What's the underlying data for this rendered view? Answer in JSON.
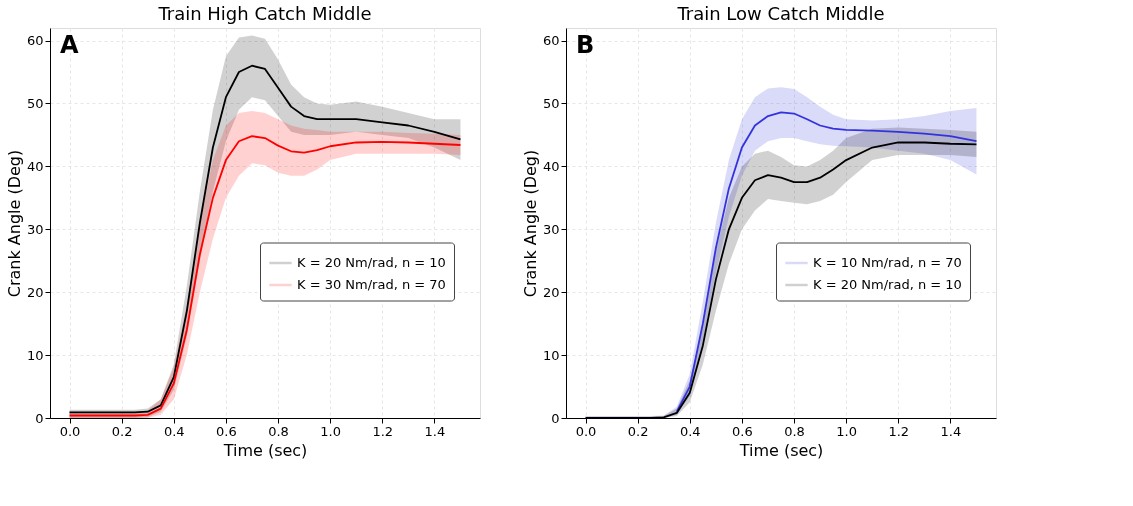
{
  "chart_data": [
    {
      "type": "line",
      "title": "Train High Catch Middle",
      "xlabel": "Time (sec)",
      "ylabel": "Crank Angle (Deg)",
      "annotations": [
        "A"
      ],
      "x": [
        0,
        0.1,
        0.2,
        0.25,
        0.3,
        0.35,
        0.4,
        0.45,
        0.5,
        0.55,
        0.6,
        0.65,
        0.7,
        0.75,
        0.8,
        0.85,
        0.9,
        0.95,
        1.0,
        1.1,
        1.2,
        1.3,
        1.4,
        1.5
      ],
      "series": [
        {
          "name": "K = 20 Nm/rad, n = 10",
          "color": "#000000",
          "values": [
            0.9,
            0.9,
            0.9,
            0.9,
            1.0,
            2,
            6.5,
            17,
            31,
            43,
            51,
            55,
            56,
            55.5,
            52.5,
            49.5,
            48,
            47.5,
            47.5,
            47.5,
            47,
            46.5,
            45.5,
            44.3
          ],
          "lower": [
            0,
            0,
            0,
            0,
            0.1,
            1,
            4.5,
            13,
            25,
            36,
            44,
            49,
            51,
            50.5,
            48,
            45.5,
            45,
            45,
            45,
            45.5,
            45,
            44.5,
            43,
            41
          ],
          "upper": [
            1.3,
            1.3,
            1.3,
            1.3,
            1.5,
            3,
            8.5,
            21,
            36,
            49,
            57.5,
            60.5,
            60.8,
            60.3,
            57,
            53,
            51,
            50,
            49.8,
            50.3,
            49.5,
            48.5,
            47.5,
            47.5
          ]
        },
        {
          "name": "K = 30 Nm/rad, n = 70",
          "color": "#ff0000",
          "values": [
            0.4,
            0.4,
            0.4,
            0.4,
            0.5,
            1.5,
            5.5,
            14,
            26,
            35,
            41,
            44,
            44.8,
            44.5,
            43.3,
            42.4,
            42.2,
            42.6,
            43.2,
            43.8,
            43.9,
            43.8,
            43.6,
            43.4
          ],
          "lower": [
            0,
            0,
            0,
            0,
            0,
            0.5,
            3,
            10,
            20,
            28.5,
            35,
            38.5,
            40.5,
            40.2,
            39,
            38.5,
            38.5,
            39.5,
            41,
            42,
            42,
            42,
            42,
            41.8
          ],
          "upper": [
            1,
            1,
            1,
            1,
            1.2,
            3,
            8,
            18,
            31,
            41,
            46.5,
            48.5,
            48.8,
            48.5,
            47.5,
            46.5,
            46,
            45.8,
            45.5,
            45.5,
            45.5,
            45.3,
            45.2,
            45
          ]
        }
      ],
      "xlim": [
        -0.075,
        1.575
      ],
      "ylim": [
        0,
        62
      ],
      "xticks": [
        {
          "value": 0,
          "label": "0.0"
        },
        {
          "value": 0.2,
          "label": "0.2"
        },
        {
          "value": 0.4,
          "label": "0.4"
        },
        {
          "value": 0.6,
          "label": "0.6"
        },
        {
          "value": 0.8,
          "label": "0.8"
        },
        {
          "value": 1.0,
          "label": "1.0"
        },
        {
          "value": 1.2,
          "label": "1.2"
        },
        {
          "value": 1.4,
          "label": "1.4"
        }
      ],
      "yticks": [
        0,
        10,
        20,
        30,
        40,
        50,
        60
      ],
      "grid": true,
      "legend": "center right",
      "line_style": "solid"
    },
    {
      "type": "line",
      "title": "Train Low Catch Middle",
      "xlabel": "Time (sec)",
      "ylabel": "Crank Angle (Deg)",
      "annotations": [
        "B"
      ],
      "x": [
        0,
        0.1,
        0.2,
        0.25,
        0.3,
        0.35,
        0.4,
        0.45,
        0.5,
        0.55,
        0.6,
        0.65,
        0.7,
        0.75,
        0.8,
        0.85,
        0.9,
        0.95,
        1.0,
        1.1,
        1.2,
        1.3,
        1.4,
        1.5
      ],
      "series": [
        {
          "name": "K = 10 Nm/rad, n = 70",
          "color": "#3333dd",
          "values": [
            null,
            null,
            null,
            null,
            null,
            1,
            5,
            15,
            27,
            36.5,
            43,
            46.5,
            48,
            48.6,
            48.4,
            47.5,
            46.5,
            46,
            45.8,
            45.7,
            45.5,
            45.2,
            44.8,
            44
          ],
          "lower": [
            0,
            0,
            0,
            0,
            0,
            0.5,
            3.5,
            12,
            23,
            32,
            38.5,
            42.5,
            44,
            44.5,
            44.5,
            44,
            43.5,
            43.3,
            43.2,
            43,
            42.5,
            42,
            41,
            38.7
          ],
          "upper": [
            0.3,
            0.3,
            0.3,
            0.3,
            0.4,
            1.8,
            7,
            18.5,
            31,
            41,
            47.5,
            51,
            52.4,
            52.6,
            52.3,
            51,
            49.5,
            48.2,
            47.5,
            47.3,
            47.5,
            48,
            48.8,
            49.3
          ]
        },
        {
          "name": "K = 20 Nm/rad, n = 10",
          "color": "#000000",
          "values": [
            0,
            0,
            0,
            0,
            0.1,
            0.8,
            4,
            11.5,
            22,
            30,
            35,
            37.8,
            38.6,
            38.2,
            37.5,
            37.5,
            38.2,
            39.5,
            41,
            43,
            43.8,
            43.8,
            43.6,
            43.5
          ],
          "lower": [
            0,
            0,
            0,
            0,
            0,
            0.3,
            2.5,
            8.5,
            17,
            24.5,
            30,
            33,
            34.8,
            34.5,
            34.2,
            34,
            34.5,
            35.5,
            37.5,
            41,
            41.8,
            41.8,
            41.8,
            41.5
          ],
          "upper": [
            0.2,
            0.2,
            0.2,
            0.2,
            0.3,
            1.5,
            6,
            14.5,
            26.5,
            35,
            40,
            42,
            42.5,
            41.5,
            40.2,
            40,
            41,
            42.5,
            44.5,
            46,
            46.2,
            46,
            45.8,
            45.5
          ]
        }
      ],
      "xlim": [
        -0.075,
        1.575
      ],
      "ylim": [
        0,
        62
      ],
      "xticks": [
        {
          "value": 0,
          "label": "0.0"
        },
        {
          "value": 0.2,
          "label": "0.2"
        },
        {
          "value": 0.4,
          "label": "0.4"
        },
        {
          "value": 0.6,
          "label": "0.6"
        },
        {
          "value": 0.8,
          "label": "0.8"
        },
        {
          "value": 1.0,
          "label": "1.0"
        },
        {
          "value": 1.2,
          "label": "1.2"
        },
        {
          "value": 1.4,
          "label": "1.4"
        }
      ],
      "yticks": [
        0,
        10,
        20,
        30,
        40,
        50,
        60
      ],
      "grid": true,
      "legend": "center right",
      "line_style": "solid"
    }
  ]
}
